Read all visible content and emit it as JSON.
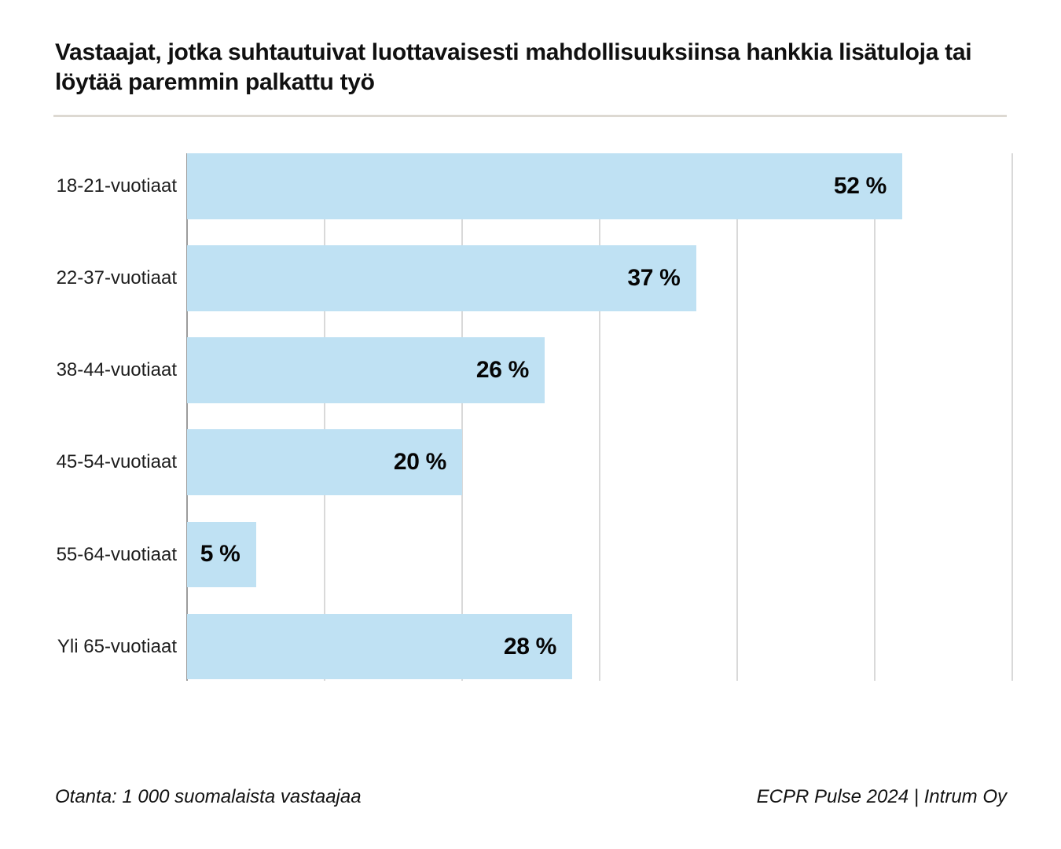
{
  "chart_data": {
    "type": "bar",
    "orientation": "horizontal",
    "title": "Vastaajat, jotka suhtautuivat luottavaisesti mahdollisuuksiinsa hankkia lisätuloja tai löytää paremmin palkattu työ",
    "categories": [
      "18-21-vuotiaat",
      "22-37-vuotiaat",
      "38-44-vuotiaat",
      "45-54-vuotiaat",
      "55-64-vuotiaat",
      "Yli 65-vuotiaat"
    ],
    "values": [
      52,
      37,
      26,
      20,
      5,
      28
    ],
    "value_labels": [
      "52 %",
      "37 %",
      "26 %",
      "20 %",
      "5 %",
      "28 %"
    ],
    "xlabel": "",
    "ylabel": "",
    "xlim": [
      0,
      60
    ],
    "gridline_step": 10,
    "grid": true,
    "legend": false,
    "bar_color": "#bfe1f3",
    "gridline_color": "#d9d9d9",
    "axis_line_color": "#9c9c9c"
  },
  "footer": {
    "left": "Otanta: 1 000 suomalaista vastaajaa",
    "right": "ECPR Pulse 2024 | Intrum Oy"
  }
}
